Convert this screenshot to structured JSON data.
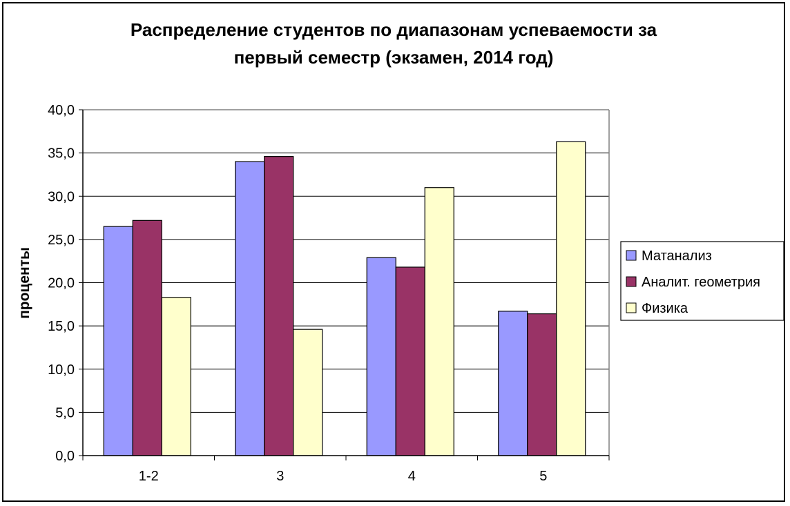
{
  "chart_data": {
    "type": "bar",
    "title_lines": [
      "Распределение студентов по диапазонам успеваемости за",
      "первый семестр (экзамен, 2014 год)"
    ],
    "xlabel": "",
    "ylabel": "проценты",
    "categories": [
      "1-2",
      "3",
      "4",
      "5"
    ],
    "y_ticks": [
      "0,0",
      "5,0",
      "10,0",
      "15,0",
      "20,0",
      "25,0",
      "30,0",
      "35,0",
      "40,0"
    ],
    "ylim": [
      0,
      40
    ],
    "grid": true,
    "legend_position": "right",
    "series": [
      {
        "name": "Матанализ",
        "color": "#9999ff",
        "values": [
          26.5,
          34.0,
          22.9,
          16.7
        ]
      },
      {
        "name": "Аналит. геометрия",
        "color": "#993366",
        "values": [
          27.2,
          34.6,
          21.8,
          16.4
        ]
      },
      {
        "name": "Физика",
        "color": "#ffffcc",
        "values": [
          18.3,
          14.6,
          31.0,
          36.3
        ]
      }
    ]
  }
}
